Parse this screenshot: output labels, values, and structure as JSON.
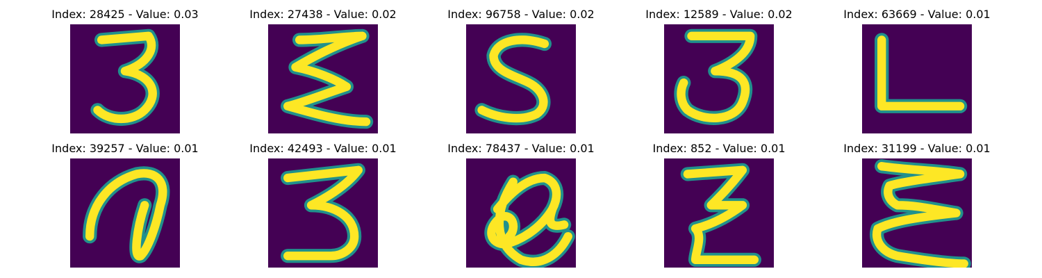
{
  "chart_data": {
    "type": "image-grid",
    "rows": 2,
    "cols": 5,
    "colors": {
      "background": "#440154",
      "stroke": "#fde725",
      "edge": "#21918c"
    },
    "panels": [
      {
        "title": "Index: 28425 - Value: 0.03",
        "index": 28425,
        "value": 0.03,
        "glyph": "3"
      },
      {
        "title": "Index: 27438 - Value: 0.02",
        "index": 27438,
        "value": 0.02,
        "glyph": "Σ"
      },
      {
        "title": "Index: 96758 - Value: 0.02",
        "index": 96758,
        "value": 0.02,
        "glyph": "S"
      },
      {
        "title": "Index: 12589 - Value: 0.02",
        "index": 12589,
        "value": 0.02,
        "glyph": "3"
      },
      {
        "title": "Index: 63669 - Value: 0.01",
        "index": 63669,
        "value": 0.01,
        "glyph": "L"
      },
      {
        "title": "Index: 39257 - Value: 0.01",
        "index": 39257,
        "value": 0.01,
        "glyph": "a"
      },
      {
        "title": "Index: 42493 - Value: 0.01",
        "index": 42493,
        "value": 0.01,
        "glyph": "3"
      },
      {
        "title": "Index: 78437 - Value: 0.01",
        "index": 78437,
        "value": 0.01,
        "glyph": "a"
      },
      {
        "title": "Index: 852 - Value: 0.01",
        "index": 852,
        "value": 0.01,
        "glyph": "Z"
      },
      {
        "title": "Index: 31199 - Value: 0.01",
        "index": 31199,
        "value": 0.01,
        "glyph": "E"
      }
    ]
  }
}
